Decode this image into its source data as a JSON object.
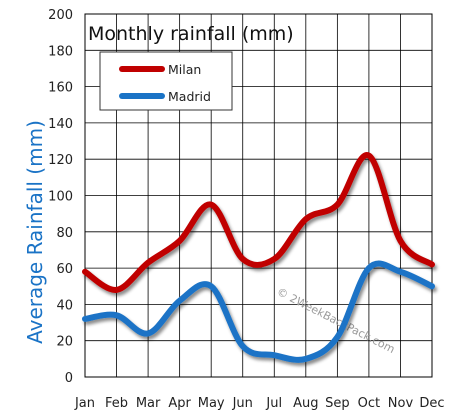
{
  "chart_data": {
    "type": "line",
    "title": "Monthly rainfall (mm)",
    "ylabel": "Average Rainfall (mm)",
    "xlabel": "",
    "categories": [
      "Jan",
      "Feb",
      "Mar",
      "Apr",
      "May",
      "Jun",
      "Jul",
      "Aug",
      "Sep",
      "Oct",
      "Nov",
      "Dec"
    ],
    "ylim": [
      0,
      200
    ],
    "yticks": [
      0,
      20,
      40,
      60,
      80,
      100,
      120,
      140,
      160,
      180,
      200
    ],
    "grid": true,
    "legend_position": "top-left",
    "series": [
      {
        "name": "Milan",
        "color": "#c00000",
        "values": [
          58,
          48,
          63,
          75,
          95,
          65,
          65,
          87,
          95,
          122,
          75,
          62
        ]
      },
      {
        "name": "Madrid",
        "color": "#1a73c6",
        "values": [
          32,
          34,
          24,
          42,
          50,
          17,
          12,
          10,
          22,
          60,
          58,
          50
        ]
      }
    ],
    "watermark": "© 2WeekBackPack.com"
  },
  "colors": {
    "ylabel": "#1a73c6",
    "grid": "#000000",
    "legend_border": "#333333"
  }
}
